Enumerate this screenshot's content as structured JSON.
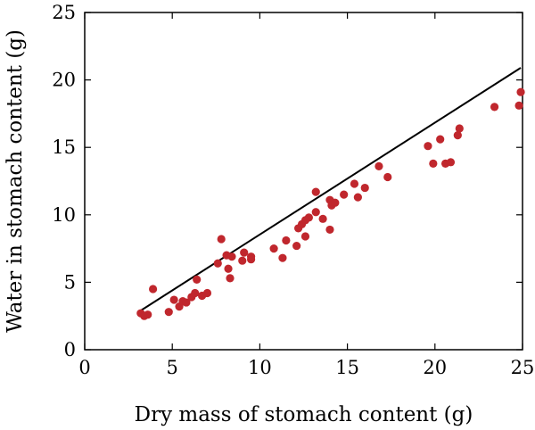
{
  "chart_data": {
    "type": "scatter",
    "xlabel": "Dry mass of stomach content (g)",
    "ylabel": "Water in stomach content (g)",
    "xlim": [
      0,
      25
    ],
    "ylim": [
      0,
      25
    ],
    "xticks": [
      0,
      5,
      10,
      15,
      20,
      25
    ],
    "yticks": [
      0,
      5,
      10,
      15,
      20,
      25
    ],
    "grid": false,
    "point_color": "#c0272d",
    "line_color": "#000000",
    "points": [
      {
        "x": 3.2,
        "y": 2.7
      },
      {
        "x": 3.4,
        "y": 2.5
      },
      {
        "x": 3.6,
        "y": 2.6
      },
      {
        "x": 3.9,
        "y": 4.5
      },
      {
        "x": 4.8,
        "y": 2.8
      },
      {
        "x": 5.1,
        "y": 3.7
      },
      {
        "x": 5.4,
        "y": 3.2
      },
      {
        "x": 5.6,
        "y": 3.6
      },
      {
        "x": 5.8,
        "y": 3.5
      },
      {
        "x": 6.1,
        "y": 3.9
      },
      {
        "x": 6.3,
        "y": 4.2
      },
      {
        "x": 6.4,
        "y": 5.2
      },
      {
        "x": 6.7,
        "y": 4.0
      },
      {
        "x": 7.0,
        "y": 4.2
      },
      {
        "x": 7.6,
        "y": 6.4
      },
      {
        "x": 7.8,
        "y": 8.2
      },
      {
        "x": 8.1,
        "y": 7.0
      },
      {
        "x": 8.2,
        "y": 6.0
      },
      {
        "x": 8.3,
        "y": 5.3
      },
      {
        "x": 8.4,
        "y": 6.9
      },
      {
        "x": 9.0,
        "y": 6.6
      },
      {
        "x": 9.1,
        "y": 7.2
      },
      {
        "x": 9.5,
        "y": 6.9
      },
      {
        "x": 9.5,
        "y": 6.7
      },
      {
        "x": 10.8,
        "y": 7.5
      },
      {
        "x": 11.3,
        "y": 6.8
      },
      {
        "x": 11.5,
        "y": 8.1
      },
      {
        "x": 12.1,
        "y": 7.7
      },
      {
        "x": 12.2,
        "y": 9.0
      },
      {
        "x": 12.4,
        "y": 9.3
      },
      {
        "x": 12.6,
        "y": 8.4
      },
      {
        "x": 12.6,
        "y": 9.6
      },
      {
        "x": 12.8,
        "y": 9.8
      },
      {
        "x": 13.2,
        "y": 11.7
      },
      {
        "x": 13.2,
        "y": 10.2
      },
      {
        "x": 13.6,
        "y": 9.7
      },
      {
        "x": 14.0,
        "y": 8.9
      },
      {
        "x": 14.0,
        "y": 11.1
      },
      {
        "x": 14.1,
        "y": 10.7
      },
      {
        "x": 14.3,
        "y": 10.9
      },
      {
        "x": 14.8,
        "y": 11.5
      },
      {
        "x": 15.4,
        "y": 12.3
      },
      {
        "x": 15.6,
        "y": 11.3
      },
      {
        "x": 16.0,
        "y": 12.0
      },
      {
        "x": 16.8,
        "y": 13.6
      },
      {
        "x": 17.3,
        "y": 12.8
      },
      {
        "x": 19.6,
        "y": 15.1
      },
      {
        "x": 19.9,
        "y": 13.8
      },
      {
        "x": 20.3,
        "y": 15.6
      },
      {
        "x": 20.6,
        "y": 13.8
      },
      {
        "x": 20.9,
        "y": 13.9
      },
      {
        "x": 21.3,
        "y": 15.9
      },
      {
        "x": 21.4,
        "y": 16.4
      },
      {
        "x": 23.4,
        "y": 18.0
      },
      {
        "x": 24.8,
        "y": 18.1
      },
      {
        "x": 24.9,
        "y": 19.1
      }
    ],
    "fit_line": {
      "x": [
        3.2,
        24.9
      ],
      "y": [
        2.9,
        20.9
      ]
    }
  }
}
